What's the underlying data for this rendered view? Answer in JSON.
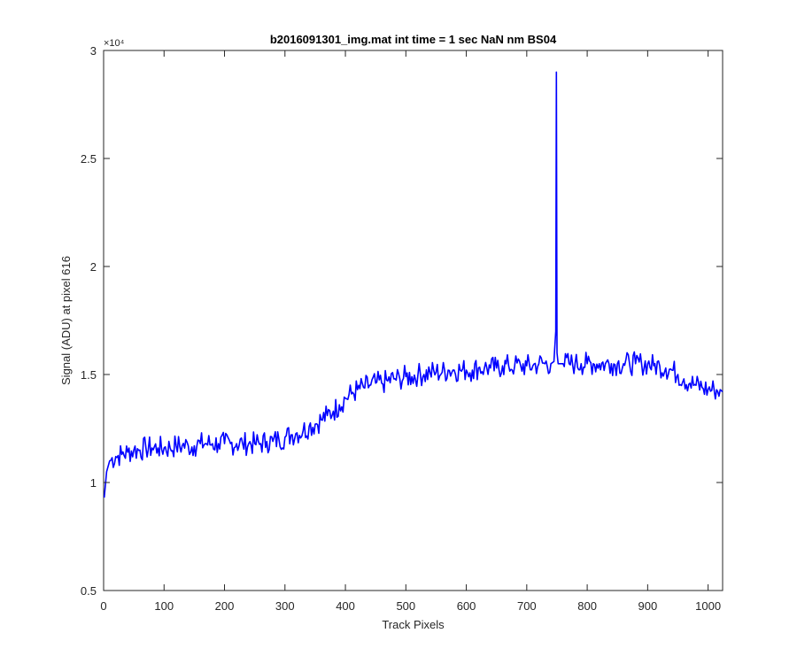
{
  "colors": {
    "series": "#0000ff",
    "axis": "#262626",
    "background": "#ffffff"
  },
  "chart_data": {
    "type": "line",
    "title": "b2016091301_img.mat int time = 1 sec  NaN nm BS04",
    "xlabel": "Track Pixels",
    "ylabel": "Signal (ADU) at pixel 616",
    "y_exponent_label": "×10⁴",
    "xlim": [
      0,
      1024
    ],
    "ylim": [
      0.5,
      3.0
    ],
    "y_scale_factor": 10000,
    "box": true,
    "grid": false,
    "x_ticks": [
      0,
      100,
      200,
      300,
      400,
      500,
      600,
      700,
      800,
      900,
      1000
    ],
    "x_tick_labels": [
      "0",
      "100",
      "200",
      "300",
      "400",
      "500",
      "600",
      "700",
      "800",
      "900",
      "1000"
    ],
    "y_ticks": [
      0.5,
      1.0,
      1.5,
      2.0,
      2.5,
      3.0
    ],
    "y_tick_labels": [
      "0.5",
      "1",
      "1.5",
      "2",
      "2.5",
      "3"
    ],
    "series": [
      {
        "x": [
          1,
          5,
          10,
          20,
          30,
          40,
          50,
          60,
          70,
          80,
          90,
          100,
          110,
          120,
          130,
          140,
          150,
          160,
          170,
          180,
          190,
          200,
          210,
          220,
          230,
          240,
          250,
          260,
          270,
          280,
          290,
          300,
          310,
          320,
          330,
          340,
          350,
          360,
          370,
          380,
          390,
          400,
          410,
          420,
          430,
          440,
          450,
          460,
          470,
          480,
          490,
          500,
          510,
          520,
          530,
          540,
          550,
          560,
          570,
          580,
          590,
          600,
          610,
          620,
          630,
          640,
          650,
          660,
          670,
          680,
          690,
          700,
          710,
          720,
          730,
          740,
          745,
          748,
          749,
          750,
          752,
          755,
          760,
          770,
          780,
          790,
          800,
          810,
          820,
          830,
          840,
          850,
          860,
          870,
          880,
          890,
          900,
          910,
          920,
          930,
          940,
          950,
          960,
          970,
          980,
          990,
          1000,
          1010,
          1020,
          1024
        ],
        "y": [
          0.93,
          1.05,
          1.1,
          1.12,
          1.13,
          1.14,
          1.15,
          1.15,
          1.16,
          1.16,
          1.16,
          1.16,
          1.16,
          1.17,
          1.17,
          1.17,
          1.17,
          1.18,
          1.18,
          1.18,
          1.18,
          1.18,
          1.18,
          1.18,
          1.18,
          1.18,
          1.18,
          1.18,
          1.19,
          1.19,
          1.2,
          1.21,
          1.22,
          1.23,
          1.24,
          1.26,
          1.27,
          1.29,
          1.31,
          1.33,
          1.36,
          1.39,
          1.41,
          1.43,
          1.44,
          1.45,
          1.46,
          1.46,
          1.47,
          1.48,
          1.48,
          1.49,
          1.49,
          1.5,
          1.5,
          1.51,
          1.51,
          1.51,
          1.52,
          1.52,
          1.52,
          1.52,
          1.52,
          1.53,
          1.53,
          1.53,
          1.53,
          1.54,
          1.54,
          1.54,
          1.54,
          1.54,
          1.54,
          1.55,
          1.55,
          1.55,
          1.56,
          1.7,
          2.9,
          1.6,
          1.55,
          1.55,
          1.55,
          1.55,
          1.55,
          1.55,
          1.55,
          1.55,
          1.55,
          1.55,
          1.55,
          1.55,
          1.55,
          1.55,
          1.55,
          1.55,
          1.55,
          1.54,
          1.54,
          1.53,
          1.52,
          1.5,
          1.48,
          1.46,
          1.45,
          1.44,
          1.43,
          1.43,
          1.43,
          1.42
        ]
      }
    ]
  }
}
